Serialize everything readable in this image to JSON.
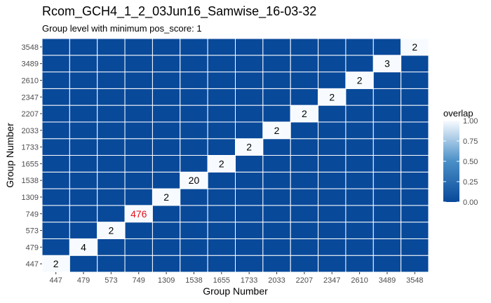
{
  "title": "Rcom_GCH4_1_2_03Jun16_Samwise_16-03-32",
  "subtitle": "Group level with minimum pos_score: 1",
  "chart_data": {
    "type": "heatmap",
    "title": "Rcom_GCH4_1_2_03Jun16_Samwise_16-03-32",
    "subtitle": "Group level with minimum pos_score: 1",
    "xlabel": "Group Number",
    "ylabel": "Group Number",
    "x_categories": [
      "447",
      "479",
      "573",
      "749",
      "1309",
      "1538",
      "1655",
      "1733",
      "2033",
      "2207",
      "2347",
      "2610",
      "3489",
      "3548"
    ],
    "y_categories": [
      "447",
      "479",
      "573",
      "749",
      "1309",
      "1538",
      "1655",
      "1733",
      "2033",
      "2207",
      "2347",
      "2610",
      "3489",
      "3548"
    ],
    "diagonal_labels": [
      "2",
      "4",
      "2",
      "476",
      "2",
      "20",
      "2",
      "2",
      "2",
      "2",
      "2",
      "2",
      "3",
      "2"
    ],
    "highlight_label_color": "#e8101c",
    "default_label_color": "#000000",
    "diagonal_overlap": 1.0,
    "off_diagonal_overlap": 0.0,
    "legend": {
      "title": "overlap",
      "ticks": [
        "0.00",
        "0.25",
        "0.50",
        "0.75",
        "1.00"
      ],
      "tick_values": [
        0,
        0.25,
        0.5,
        0.75,
        1
      ],
      "placement": "right"
    },
    "colors": {
      "low": "#08499a",
      "mid": "#4a8fc7",
      "high": "#f7fbff"
    },
    "grid": true
  }
}
